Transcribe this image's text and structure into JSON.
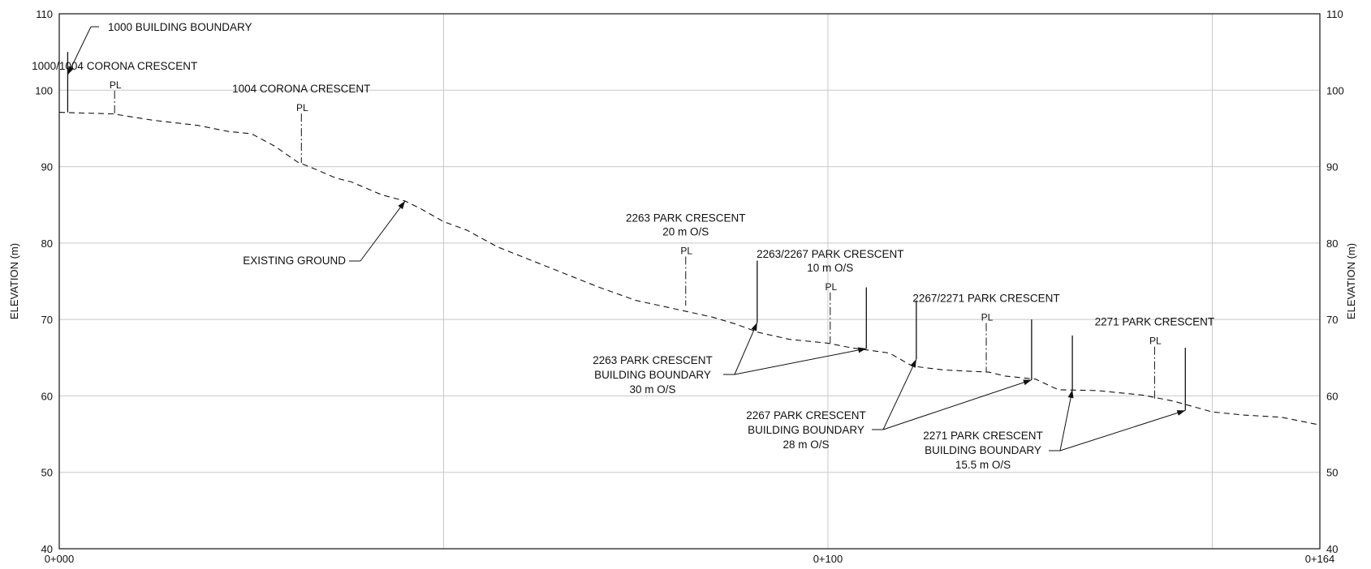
{
  "axes": {
    "y_label_left": "ELEVATION (m)",
    "y_label_right": "ELEVATION (m)",
    "y_ticks": [
      "40",
      "50",
      "60",
      "70",
      "80",
      "90",
      "100",
      "110"
    ],
    "x_ticks": [
      {
        "chainage": 0,
        "label": "0+000"
      },
      {
        "chainage": 100,
        "label": "0+100"
      },
      {
        "chainage": 164,
        "label": "0+164"
      }
    ]
  },
  "chart_data": {
    "type": "line",
    "xlim": [
      0,
      164
    ],
    "ylim": [
      40,
      110
    ],
    "grid": true,
    "x_grid_chainages": [
      50,
      100,
      150
    ],
    "existing_ground": [
      [
        0,
        97.1
      ],
      [
        7,
        96.9
      ],
      [
        12,
        96.1
      ],
      [
        18,
        95.4
      ],
      [
        22,
        94.6
      ],
      [
        25,
        94.3
      ],
      [
        28,
        92.7
      ],
      [
        31,
        90.6
      ],
      [
        33,
        89.8
      ],
      [
        36,
        88.5
      ],
      [
        38,
        88.0
      ],
      [
        42,
        86.3
      ],
      [
        45,
        85.5
      ],
      [
        47,
        84.5
      ],
      [
        50,
        82.8
      ],
      [
        53,
        81.7
      ],
      [
        57,
        79.5
      ],
      [
        60,
        78.3
      ],
      [
        65,
        76.3
      ],
      [
        70,
        74.3
      ],
      [
        75,
        72.5
      ],
      [
        80,
        71.4
      ],
      [
        85,
        70.3
      ],
      [
        88,
        69.4
      ],
      [
        91,
        68.3
      ],
      [
        95,
        67.4
      ],
      [
        100,
        66.9
      ],
      [
        103,
        66.3
      ],
      [
        108,
        65.6
      ],
      [
        111,
        63.9
      ],
      [
        115,
        63.4
      ],
      [
        121,
        63.1
      ],
      [
        123,
        62.6
      ],
      [
        127,
        62.2
      ],
      [
        130,
        60.8
      ],
      [
        135,
        60.7
      ],
      [
        141,
        60.1
      ],
      [
        145,
        59.3
      ],
      [
        150,
        57.9
      ],
      [
        154,
        57.5
      ],
      [
        159,
        57.2
      ],
      [
        164,
        56.2
      ]
    ]
  },
  "annotations": {
    "existing_ground_label": "EXISTING GROUND",
    "pl_symbol": "PL",
    "property_lines": [
      {
        "lines": [
          "1000/1004 CORONA CRESCENT"
        ],
        "chainage": 7.2,
        "top_elev": 101,
        "ground_elev": 96.9
      },
      {
        "lines": [
          "1004 CORONA CRESCENT"
        ],
        "chainage": 31.5,
        "top_elev": 98,
        "ground_elev": 90.5
      },
      {
        "lines": [
          "2263 PARK CRESCENT",
          "20 m O/S"
        ],
        "chainage": 81.5,
        "top_elev": 79.3,
        "ground_elev": 71.8
      },
      {
        "lines": [
          "2263/2267 PARK CRESCENT",
          "10 m O/S"
        ],
        "chainage": 100.3,
        "top_elev": 74.6,
        "ground_elev": 66.9
      },
      {
        "lines": [
          "2267/2271 PARK CRESCENT"
        ],
        "chainage": 120.6,
        "top_elev": 70.6,
        "ground_elev": 63.1
      },
      {
        "lines": [
          "2271 PARK CRESCENT"
        ],
        "chainage": 142.5,
        "top_elev": 67.5,
        "ground_elev": 59.5
      }
    ],
    "building_boundaries": [
      {
        "lines": [
          "1000 BUILDING BOUNDARY"
        ],
        "boundaries": [
          {
            "chainage": 1.1,
            "top_elev": 105,
            "ground_elev": 97.1
          }
        ]
      },
      {
        "lines": [
          "2263 PARK CRESCENT",
          "BUILDING BOUNDARY",
          "30 m O/S"
        ],
        "boundaries": [
          {
            "chainage": 90.8,
            "top_elev": 77.7,
            "ground_elev": 69.6
          },
          {
            "chainage": 105,
            "top_elev": 74.2,
            "ground_elev": 66.2
          }
        ]
      },
      {
        "lines": [
          "2267 PARK CRESCENT",
          "BUILDING BOUNDARY",
          "28 m O/S"
        ],
        "boundaries": [
          {
            "chainage": 111.5,
            "top_elev": 72.5,
            "ground_elev": 64.8
          },
          {
            "chainage": 126.5,
            "top_elev": 70.0,
            "ground_elev": 62.1
          }
        ]
      },
      {
        "lines": [
          "2271 PARK CRESCENT",
          "BUILDING BOUNDARY",
          "15.5 m O/S"
        ],
        "boundaries": [
          {
            "chainage": 131.8,
            "top_elev": 67.9,
            "ground_elev": 60.8
          },
          {
            "chainage": 146.5,
            "top_elev": 66.3,
            "ground_elev": 58.1
          }
        ]
      }
    ]
  }
}
